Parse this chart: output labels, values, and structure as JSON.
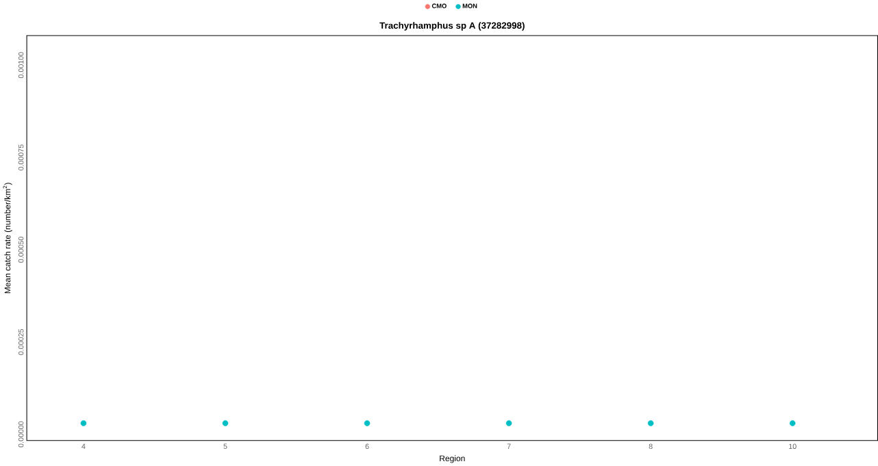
{
  "chart_data": {
    "type": "scatter",
    "title": "Trachyrhamphus sp A (37282998)",
    "xlabel": "Region",
    "ylabel": "Mean catch rate (number/km$^{2}$)",
    "categories": [
      "4",
      "5",
      "6",
      "7",
      "8",
      "10"
    ],
    "series": [
      {
        "name": "CMO",
        "color": "#f8766d",
        "values": [
          null,
          null,
          null,
          null,
          null,
          null
        ]
      },
      {
        "name": "MON",
        "color": "#00bfc4",
        "values": [
          3e-05,
          3e-05,
          3e-05,
          3e-05,
          3e-05,
          3e-05
        ]
      }
    ],
    "ylim": [
      -1.7e-05,
      0.00108
    ],
    "yticks": [
      {
        "value": 0,
        "label": "0.00000"
      },
      {
        "value": 0.00025,
        "label": "0.00025"
      },
      {
        "value": 0.0005,
        "label": "0.00050"
      },
      {
        "value": 0.00075,
        "label": "0.00075"
      },
      {
        "value": 0.001,
        "label": "0.00100"
      }
    ],
    "legend": "top",
    "marker": "circle",
    "grid": false
  }
}
